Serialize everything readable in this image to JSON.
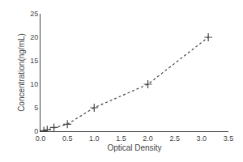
{
  "chart_data": {
    "type": "line",
    "xlabel": "Optical Density",
    "ylabel": "Concentration(ng/mL)",
    "x": [
      0.063,
      0.125,
      0.25,
      0.5,
      1.0,
      2.0,
      3.125
    ],
    "values": [
      0.1,
      0.3,
      0.8,
      1.5,
      5.0,
      10.0,
      20.0
    ],
    "color": "#444444",
    "marker": "plus",
    "line_style": "dotted",
    "xlim": [
      0,
      3.5
    ],
    "ylim": [
      0,
      25
    ],
    "xticks": [
      {
        "value": 0,
        "label": "0.0"
      },
      0.5,
      {
        "value": 1,
        "label": "1.0"
      },
      1.5,
      {
        "value": 2,
        "label": "2.0"
      },
      2.5,
      {
        "value": 3,
        "label": "3.0"
      },
      3.5
    ],
    "yticks": [
      0,
      5,
      10,
      15,
      20,
      25
    ],
    "grid": false
  }
}
